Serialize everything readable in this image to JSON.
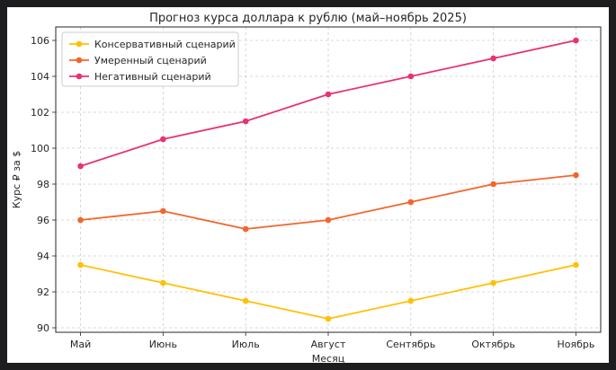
{
  "window": {
    "background": "#1d1d1f",
    "figure_background": "#ffffff"
  },
  "chart_data": {
    "type": "line",
    "title": "Прогноз курса доллара к рублю (май–ноябрь 2025)",
    "xlabel": "Месяц",
    "ylabel": "Курс ₽ за $",
    "categories": [
      "Май",
      "Июнь",
      "Июль",
      "Август",
      "Сентябрь",
      "Октябрь",
      "Ноябрь"
    ],
    "ylim": [
      90,
      106
    ],
    "ytick_step": 2,
    "yticks": [
      90,
      92,
      94,
      96,
      98,
      100,
      102,
      104,
      106
    ],
    "grid": true,
    "grid_style": "dashed",
    "legend_position": "upper left",
    "series": [
      {
        "name": "Консервативный сценарий",
        "color": "#FFC107",
        "values": [
          93.5,
          92.5,
          91.5,
          90.5,
          91.5,
          92.5,
          93.5
        ]
      },
      {
        "name": "Умеренный сценарий",
        "color": "#F2662C",
        "values": [
          96.0,
          96.5,
          95.5,
          96.0,
          97.0,
          98.0,
          98.5
        ]
      },
      {
        "name": "Негативный сценарий",
        "color": "#E8336E",
        "values": [
          99.0,
          100.5,
          101.5,
          103.0,
          104.0,
          105.0,
          106.0
        ]
      }
    ]
  }
}
